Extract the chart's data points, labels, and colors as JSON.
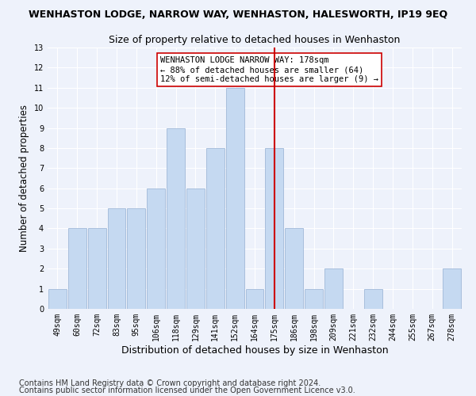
{
  "title": "WENHASTON LODGE, NARROW WAY, WENHASTON, HALESWORTH, IP19 9EQ",
  "subtitle": "Size of property relative to detached houses in Wenhaston",
  "xlabel": "Distribution of detached houses by size in Wenhaston",
  "ylabel": "Number of detached properties",
  "categories": [
    "49sqm",
    "60sqm",
    "72sqm",
    "83sqm",
    "95sqm",
    "106sqm",
    "118sqm",
    "129sqm",
    "141sqm",
    "152sqm",
    "164sqm",
    "175sqm",
    "186sqm",
    "198sqm",
    "209sqm",
    "221sqm",
    "232sqm",
    "244sqm",
    "255sqm",
    "267sqm",
    "278sqm"
  ],
  "values": [
    1,
    4,
    4,
    5,
    5,
    6,
    9,
    6,
    8,
    11,
    1,
    8,
    4,
    1,
    2,
    0,
    1,
    0,
    0,
    0,
    2
  ],
  "bar_color": "#c5d9f1",
  "bar_edge_color": "#a0b8d8",
  "vline_index": 11,
  "vline_color": "#cc0000",
  "ylim": [
    0,
    13
  ],
  "annotation_text": "WENHASTON LODGE NARROW WAY: 178sqm\n← 88% of detached houses are smaller (64)\n12% of semi-detached houses are larger (9) →",
  "annotation_box_color": "#ffffff",
  "annotation_box_edge": "#cc0000",
  "footer1": "Contains HM Land Registry data © Crown copyright and database right 2024.",
  "footer2": "Contains public sector information licensed under the Open Government Licence v3.0.",
  "background_color": "#eef2fb",
  "plot_bg_color": "#eef2fb",
  "grid_color": "#ffffff",
  "title_fontsize": 9,
  "subtitle_fontsize": 9,
  "xlabel_fontsize": 9,
  "ylabel_fontsize": 8.5,
  "tick_fontsize": 7,
  "footer_fontsize": 7,
  "annot_fontsize": 7.5
}
